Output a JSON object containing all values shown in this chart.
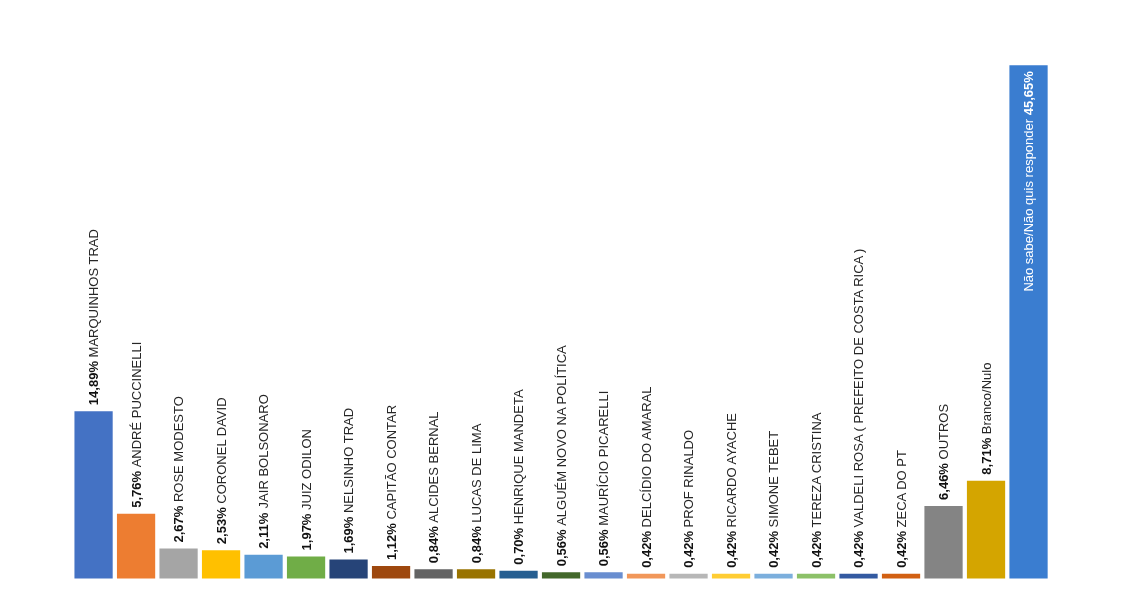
{
  "chart_data": {
    "type": "bar",
    "categories": [
      "MARQUINHOS TRAD",
      "ANDRÉ PUCCINELLI",
      "ROSE MODESTO",
      "CORONEL DAVID",
      "JAIR BOLSONARO",
      "JUIZ ODILON",
      "NELSINHO TRAD",
      "CAPITÃO CONTAR",
      "ALCIDES BERNAL",
      "LUCAS DE LIMA",
      "HENRIQUE MANDETA",
      "ALGUÉM NOVO NA POLÍTICA",
      "MAURÍCIO PICARELLI",
      "DELCÍDIO DO AMARAL",
      "PROF RINALDO",
      "RICARDO AYACHE",
      "SIMONE TEBET",
      "TEREZA CRISTINA",
      "VALDELI ROSA ( PREFEITO DE COSTA RICA )",
      "ZECA DO PT",
      "OUTROS",
      "Branco/Nulo",
      "Não sabe/Não quis responder"
    ],
    "values": [
      14.89,
      5.76,
      2.67,
      2.53,
      2.11,
      1.97,
      1.69,
      1.12,
      0.84,
      0.84,
      0.7,
      0.56,
      0.56,
      0.42,
      0.42,
      0.42,
      0.42,
      0.42,
      0.42,
      0.42,
      6.46,
      8.71,
      45.65
    ],
    "value_labels": [
      "14,89%",
      "5,76%",
      "2,67%",
      "2,53%",
      "2,11%",
      "1,97%",
      "1,69%",
      "1,12%",
      "0,84%",
      "0,84%",
      "0,70%",
      "0,56%",
      "0,56%",
      "0,42%",
      "0,42%",
      "0,42%",
      "0,42%",
      "0,42%",
      "0,42%",
      "0,42%",
      "6,46%",
      "8,71%",
      "45,65%"
    ],
    "colors": [
      "#4472c4",
      "#ed7d31",
      "#a5a5a5",
      "#ffc000",
      "#5b9bd5",
      "#70ad47",
      "#264478",
      "#9e480e",
      "#636363",
      "#997300",
      "#255e91",
      "#43682b",
      "#698ed0",
      "#f1975a",
      "#b7b7b7",
      "#ffcd33",
      "#7cafdd",
      "#8cc168",
      "#335aa1",
      "#d26012",
      "#848484",
      "#d4a500",
      "#3a7dd0"
    ]
  }
}
